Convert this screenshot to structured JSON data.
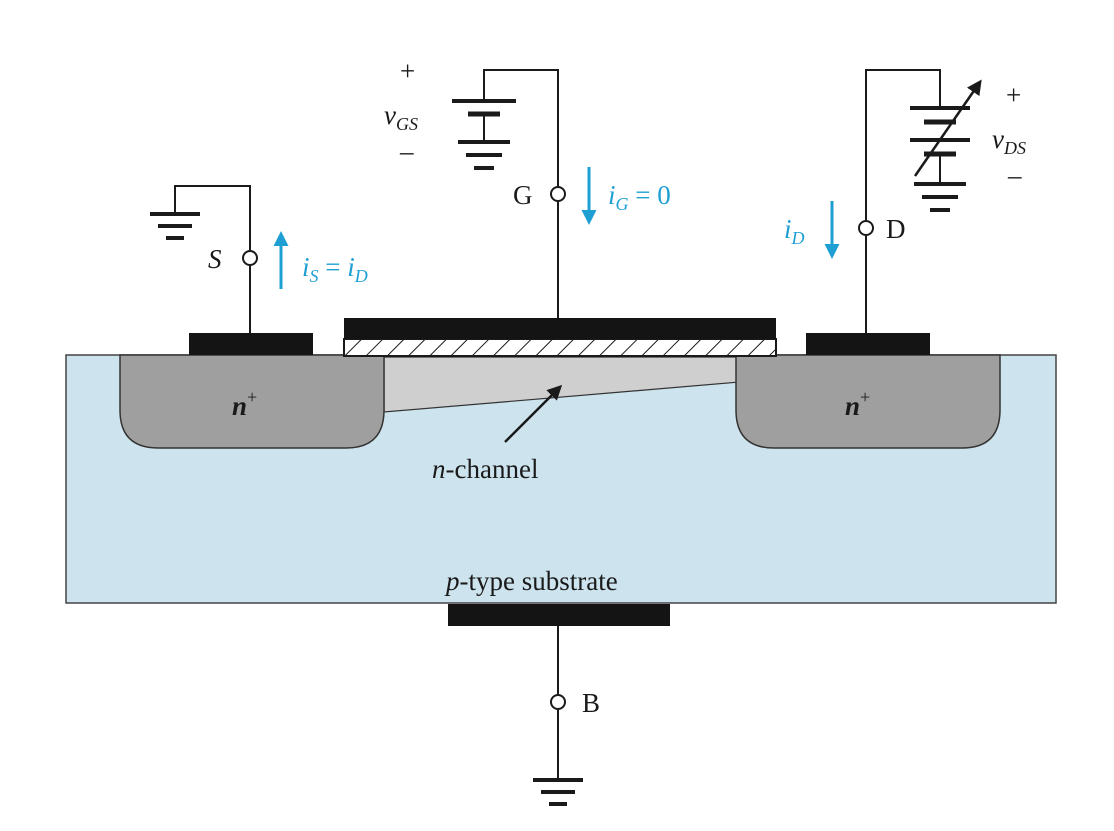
{
  "terminals": {
    "source": "S",
    "gate": "G",
    "drain": "D",
    "body": "B"
  },
  "currents": {
    "source": {
      "i": "i",
      "sub": "S",
      "eq": " = ",
      "rhs_i": "i",
      "rhs_sub": "D"
    },
    "gate": {
      "i": "i",
      "sub": "G",
      "eq": " = 0"
    },
    "drain": {
      "i": "i",
      "sub": "D"
    }
  },
  "sources": {
    "vgs": {
      "v": "v",
      "sub": "GS",
      "plus": "+",
      "minus": "–"
    },
    "vds": {
      "v": "v",
      "sub": "DS",
      "plus": "+",
      "minus": "–"
    }
  },
  "regions": {
    "source_doping": {
      "n": "n",
      "sup": "+"
    },
    "drain_doping": {
      "n": "n",
      "sup": "+"
    },
    "channel": {
      "n": "n",
      "rest": "-channel"
    },
    "substrate": {
      "p": "p",
      "rest": "-type substrate"
    }
  },
  "colors": {
    "substrate": "#cde4ee",
    "n_plus": "#9f9f9f",
    "channel": "#cfcfcf",
    "metal": "#141414",
    "current_arrow": "#1e9fd4",
    "wire": "#1a1a1a"
  },
  "icons": [
    "ground-icon",
    "dc-battery-icon",
    "variable-battery-icon",
    "current-arrow-icon"
  ]
}
